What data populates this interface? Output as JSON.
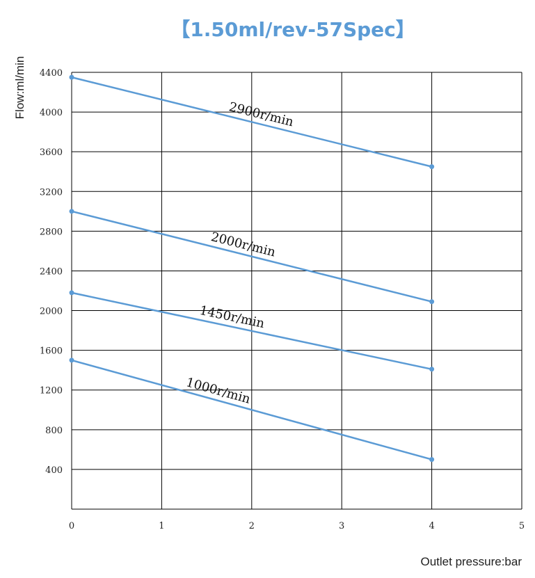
{
  "chart_data": {
    "type": "line",
    "title": "【1.50ml/rev-57Spec】",
    "xlabel": "Outlet pressure:bar",
    "ylabel": "Flow:ml/min",
    "xlim": [
      0,
      5
    ],
    "ylim": [
      0,
      4400
    ],
    "x_ticks": [
      "0",
      "1",
      "2",
      "3",
      "4",
      "5"
    ],
    "y_ticks": [
      "400",
      "800",
      "1200",
      "1600",
      "2000",
      "2400",
      "2800",
      "3200",
      "3600",
      "4000",
      "4400"
    ],
    "grid": true,
    "series": [
      {
        "name": "2900r/min",
        "x": [
          0,
          4
        ],
        "y": [
          4350,
          3450
        ]
      },
      {
        "name": "2000r/min",
        "x": [
          0,
          4
        ],
        "y": [
          3000,
          2090
        ]
      },
      {
        "name": "1450r/min",
        "x": [
          0,
          4
        ],
        "y": [
          2180,
          1410
        ]
      },
      {
        "name": "1000r/min",
        "x": [
          0,
          4
        ],
        "y": [
          1500,
          500
        ]
      }
    ],
    "line_color": "#5b9bd5",
    "grid_color": "#000000"
  }
}
